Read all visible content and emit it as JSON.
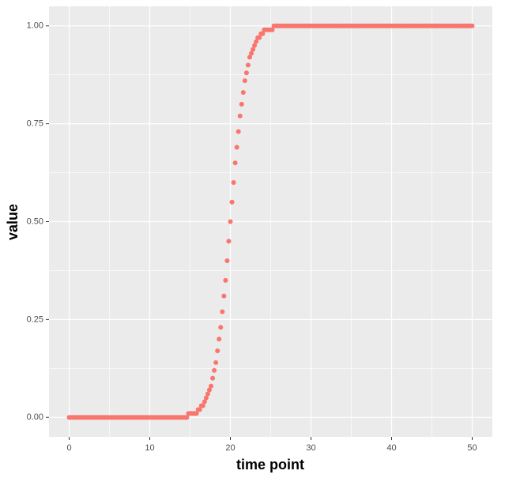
{
  "chart_data": {
    "type": "scatter",
    "x_label": "time point",
    "y_label": "value",
    "color": "#F8766D",
    "background": "#EBEBEB",
    "grid": true,
    "xlim": [
      -2.5,
      52.5
    ],
    "ylim": [
      -0.05,
      1.05
    ],
    "xticks": [
      0,
      10,
      20,
      30,
      40,
      50
    ],
    "x_minor_ticks": [
      5,
      15,
      25,
      35,
      45
    ],
    "yticks": [
      {
        "value": 0,
        "label": "0.00"
      },
      {
        "value": 0.25,
        "label": "0.25"
      },
      {
        "value": 0.5,
        "label": "0.50"
      },
      {
        "value": 0.75,
        "label": "0.75"
      },
      {
        "value": 1,
        "label": "1.00"
      }
    ],
    "y_minor_ticks": [
      0.125,
      0.375,
      0.625,
      0.875
    ],
    "x": [
      0,
      0.2,
      0.4,
      0.6,
      0.8,
      1,
      1.2,
      1.4,
      1.6,
      1.8,
      2,
      2.2,
      2.4,
      2.6,
      2.8,
      3,
      3.2,
      3.4,
      3.6,
      3.8,
      4,
      4.2,
      4.4,
      4.6,
      4.8,
      5,
      5.2,
      5.4,
      5.6,
      5.8,
      6,
      6.2,
      6.4,
      6.6,
      6.8,
      7,
      7.2,
      7.4,
      7.6,
      7.8,
      8,
      8.2,
      8.4,
      8.6,
      8.8,
      9,
      9.2,
      9.4,
      9.6,
      9.8,
      10,
      10.2,
      10.4,
      10.6,
      10.8,
      11,
      11.2,
      11.4,
      11.6,
      11.8,
      12,
      12.2,
      12.4,
      12.6,
      12.8,
      13,
      13.2,
      13.4,
      13.6,
      13.8,
      14,
      14.2,
      14.4,
      14.6,
      14.8,
      15,
      15.2,
      15.4,
      15.6,
      15.8,
      16,
      16.2,
      16.4,
      16.6,
      16.8,
      17,
      17.2,
      17.4,
      17.6,
      17.8,
      18,
      18.2,
      18.4,
      18.6,
      18.8,
      19,
      19.2,
      19.4,
      19.6,
      19.8,
      20,
      20.2,
      20.4,
      20.6,
      20.8,
      21,
      21.2,
      21.4,
      21.6,
      21.8,
      22,
      22.2,
      22.4,
      22.6,
      22.8,
      23,
      23.2,
      23.4,
      23.6,
      23.8,
      24,
      24.2,
      24.4,
      24.6,
      24.8,
      25,
      25.2,
      25.4,
      25.6,
      25.8,
      26,
      26.2,
      26.4,
      26.6,
      26.8,
      27,
      27.2,
      27.4,
      27.6,
      27.8,
      28,
      28.2,
      28.4,
      28.6,
      28.8,
      29,
      29.2,
      29.4,
      29.6,
      29.8,
      30,
      30.2,
      30.4,
      30.6,
      30.8,
      31,
      31.2,
      31.4,
      31.6,
      31.8,
      32,
      32.2,
      32.4,
      32.6,
      32.8,
      33,
      33.2,
      33.4,
      33.6,
      33.8,
      34,
      34.2,
      34.4,
      34.6,
      34.8,
      35,
      35.2,
      35.4,
      35.6,
      35.8,
      36,
      36.2,
      36.4,
      36.6,
      36.8,
      37,
      37.2,
      37.4,
      37.6,
      37.8,
      38,
      38.2,
      38.4,
      38.6,
      38.8,
      39,
      39.2,
      39.4,
      39.6,
      39.8,
      40,
      40.2,
      40.4,
      40.6,
      40.8,
      41,
      41.2,
      41.4,
      41.6,
      41.8,
      42,
      42.2,
      42.4,
      42.6,
      42.8,
      43,
      43.2,
      43.4,
      43.6,
      43.8,
      44,
      44.2,
      44.4,
      44.6,
      44.8,
      45,
      45.2,
      45.4,
      45.6,
      45.8,
      46,
      46.2,
      46.4,
      46.6,
      46.8,
      47,
      47.2,
      47.4,
      47.6,
      47.8,
      48,
      48.2,
      48.4,
      48.6,
      48.8,
      49,
      49.2,
      49.4,
      49.6,
      49.8,
      50
    ],
    "values": [
      0,
      0,
      0,
      0,
      0,
      0,
      0,
      0,
      0,
      0,
      0,
      0,
      0,
      0,
      0,
      0,
      0,
      0,
      0,
      0,
      0,
      0,
      0,
      0,
      0,
      0,
      0,
      0,
      0,
      0,
      0,
      0,
      0,
      0,
      0,
      0,
      0,
      0,
      0,
      0,
      0,
      0,
      0,
      0,
      0,
      0,
      0,
      0,
      0,
      0,
      0,
      0,
      0,
      0,
      0,
      0,
      0,
      0,
      0,
      0,
      0,
      0,
      0,
      0,
      0,
      0,
      0,
      0,
      0,
      0,
      0,
      0,
      0,
      0,
      0.01,
      0.01,
      0.01,
      0.01,
      0.01,
      0.01,
      0.02,
      0.02,
      0.03,
      0.03,
      0.04,
      0.05,
      0.06,
      0.07,
      0.08,
      0.1,
      0.12,
      0.14,
      0.17,
      0.2,
      0.23,
      0.27,
      0.31,
      0.35,
      0.4,
      0.45,
      0.5,
      0.55,
      0.6,
      0.65,
      0.69,
      0.73,
      0.77,
      0.8,
      0.83,
      0.86,
      0.88,
      0.9,
      0.92,
      0.93,
      0.94,
      0.95,
      0.96,
      0.97,
      0.97,
      0.98,
      0.98,
      0.99,
      0.99,
      0.99,
      0.99,
      0.99,
      0.99,
      1,
      1,
      1,
      1,
      1,
      1,
      1,
      1,
      1,
      1,
      1,
      1,
      1,
      1,
      1,
      1,
      1,
      1,
      1,
      1,
      1,
      1,
      1,
      1,
      1,
      1,
      1,
      1,
      1,
      1,
      1,
      1,
      1,
      1,
      1,
      1,
      1,
      1,
      1,
      1,
      1,
      1,
      1,
      1,
      1,
      1,
      1,
      1,
      1,
      1,
      1,
      1,
      1,
      1,
      1,
      1,
      1,
      1,
      1,
      1,
      1,
      1,
      1,
      1,
      1,
      1,
      1,
      1,
      1,
      1,
      1,
      1,
      1,
      1,
      1,
      1,
      1,
      1,
      1,
      1,
      1,
      1,
      1,
      1,
      1,
      1,
      1,
      1,
      1,
      1,
      1,
      1,
      1,
      1,
      1,
      1,
      1,
      1,
      1,
      1,
      1,
      1,
      1,
      1,
      1,
      1,
      1,
      1,
      1,
      1,
      1,
      1,
      1,
      1,
      1,
      1,
      1,
      1,
      1,
      1,
      1,
      1,
      1,
      1
    ]
  }
}
